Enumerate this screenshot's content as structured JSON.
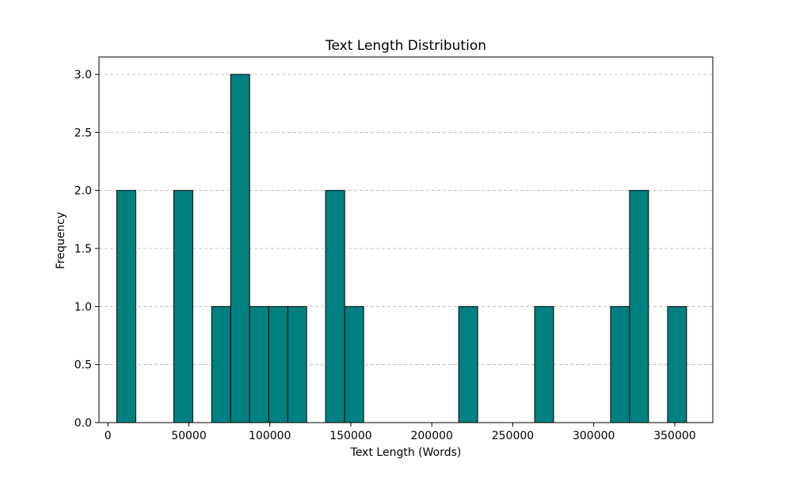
{
  "chart_data": {
    "type": "bar",
    "title": "Text Length Distribution",
    "xlabel": "Text Length (Words)",
    "ylabel": "Frequency",
    "xlim": [
      -5500,
      373500
    ],
    "ylim": [
      0,
      3.15
    ],
    "x_ticks": [
      0,
      50000,
      100000,
      150000,
      200000,
      250000,
      300000,
      350000
    ],
    "y_ticks": [
      0.0,
      0.5,
      1.0,
      1.5,
      2.0,
      2.5,
      3.0
    ],
    "y_tick_labels": [
      "0.0",
      "0.5",
      "1.0",
      "1.5",
      "2.0",
      "2.5",
      "3.0"
    ],
    "grid": "y-dashed",
    "bar_color": "#008080",
    "edge_color": "#000000",
    "bins": [
      {
        "x0": 5500,
        "x1": 17200,
        "count": 2
      },
      {
        "x0": 40700,
        "x1": 52400,
        "count": 2
      },
      {
        "x0": 64100,
        "x1": 75800,
        "count": 1
      },
      {
        "x0": 75800,
        "x1": 87500,
        "count": 3
      },
      {
        "x0": 87500,
        "x1": 99300,
        "count": 1
      },
      {
        "x0": 99300,
        "x1": 111000,
        "count": 1
      },
      {
        "x0": 111000,
        "x1": 122700,
        "count": 1
      },
      {
        "x0": 134400,
        "x1": 146200,
        "count": 2
      },
      {
        "x0": 146200,
        "x1": 157900,
        "count": 1
      },
      {
        "x0": 216600,
        "x1": 228300,
        "count": 1
      },
      {
        "x0": 263500,
        "x1": 275200,
        "count": 1
      },
      {
        "x0": 310400,
        "x1": 322100,
        "count": 1
      },
      {
        "x0": 322100,
        "x1": 333800,
        "count": 2
      },
      {
        "x0": 345600,
        "x1": 357300,
        "count": 1
      }
    ]
  }
}
